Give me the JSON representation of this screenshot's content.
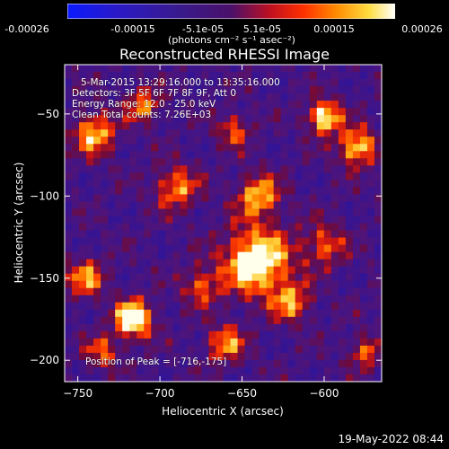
{
  "colorbar": {
    "ticks": [
      "-0.00026",
      "-0.00015",
      "-5.1e-05",
      "5.1e-05",
      "0.00015",
      "0.00026"
    ],
    "units": "(photons cm⁻² s⁻¹ asec⁻²)"
  },
  "chart_data": {
    "type": "heatmap",
    "title": "Reconstructed RHESSI Image",
    "xlabel": "Heliocentric X (arcsec)",
    "ylabel": "Heliocentric Y (arcsec)",
    "xlim": [
      -758,
      -565
    ],
    "ylim": [
      -213,
      -20
    ],
    "x_ticks": [
      -750,
      -700,
      -650,
      -600
    ],
    "y_ticks": [
      -50,
      -100,
      -150,
      -200
    ],
    "x_tick_labels": [
      "−750",
      "−700",
      "−650",
      "−600"
    ],
    "y_tick_labels": [
      "−50",
      "−100",
      "−150",
      "−200"
    ],
    "colormap": "rhessi-hot (blue-purple-red-orange-yellow-white)",
    "zlim": [
      -0.00026,
      0.00026
    ],
    "peak": [
      -716,
      -175
    ]
  },
  "annotations": {
    "time_range": "5-Mar-2015 13:29:16.000 to 13:35:16.000",
    "detectors": "Detectors: 3F 5F 6F 7F 8F 9F, Att 0",
    "energy_range": "Energy Range: 12.0 - 25.0 keV",
    "clean_info": "Clean     Total counts: 7.26E+03",
    "peak_position": "Position of Peak = [-716,-175]"
  },
  "timestamp": "19-May-2022 08:44",
  "colors": {
    "background": "#000000",
    "foreground": "#ffffff"
  }
}
